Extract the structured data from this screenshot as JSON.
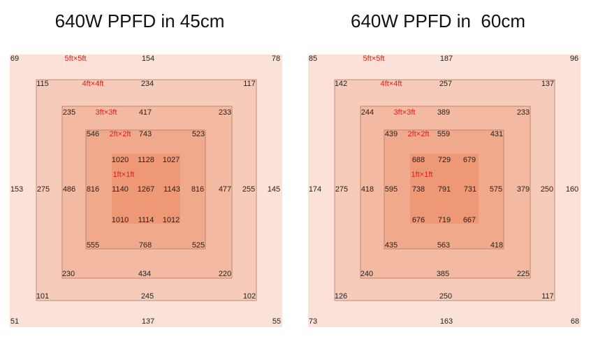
{
  "panels": [
    {
      "title": "640W PPFD in 45cm",
      "zones": [
        "5ft×5ft",
        "4ft×4ft",
        "3ft×3ft",
        "2ft×2ft",
        "1ft×1ft"
      ],
      "rows": [
        [
          69,
          154,
          78
        ],
        [
          115,
          234,
          117
        ],
        [
          235,
          417,
          233
        ],
        [
          546,
          743,
          523
        ],
        [
          1020,
          1128,
          1027
        ],
        [
          153,
          275,
          486,
          816,
          1140,
          1267,
          1143,
          816,
          477,
          255,
          145
        ],
        [
          1010,
          1114,
          1012
        ],
        [
          555,
          768,
          525
        ],
        [
          230,
          434,
          220
        ],
        [
          101,
          245,
          102
        ],
        [
          51,
          137,
          55
        ]
      ]
    },
    {
      "title": "640W PPFD in  60cm",
      "zones": [
        "5ft×5ft",
        "4ft×4ft",
        "3ft×3ft",
        "2ft×2ft",
        "1ft×1ft"
      ],
      "rows": [
        [
          85,
          187,
          96
        ],
        [
          142,
          257,
          137
        ],
        [
          244,
          389,
          233
        ],
        [
          439,
          559,
          431
        ],
        [
          688,
          729,
          679
        ],
        [
          174,
          275,
          418,
          595,
          738,
          791,
          731,
          575,
          379,
          250,
          160
        ],
        [
          676,
          719,
          667
        ],
        [
          435,
          563,
          418
        ],
        [
          240,
          385,
          225
        ],
        [
          126,
          250,
          117
        ],
        [
          73,
          163,
          68
        ]
      ]
    }
  ]
}
